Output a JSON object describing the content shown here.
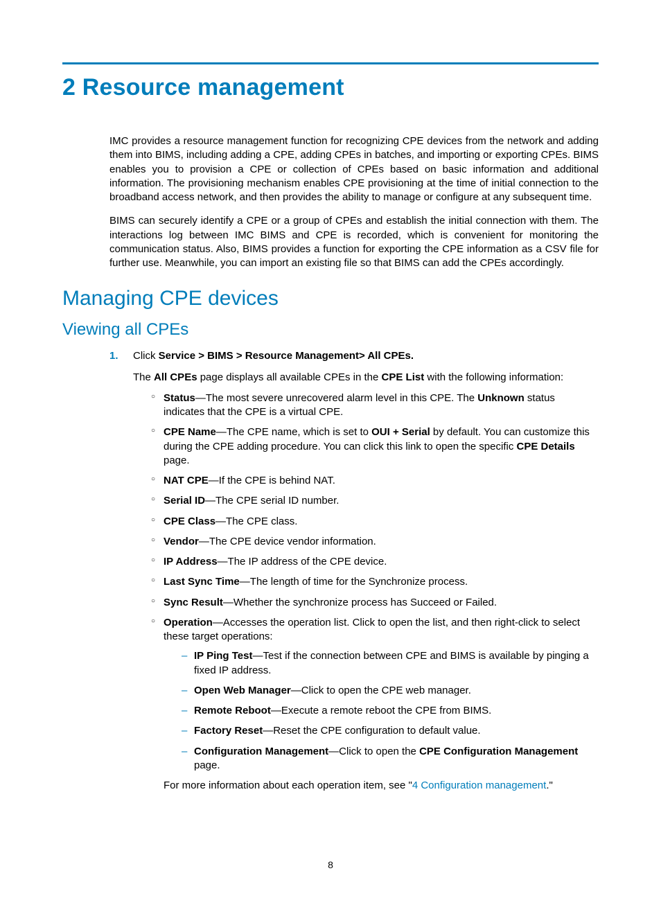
{
  "colors": {
    "accent": "#007dba",
    "text": "#000000",
    "background": "#ffffff"
  },
  "typography": {
    "body_fontsize_pt": 11,
    "h1_fontsize_pt": 26,
    "h2_fontsize_pt": 22,
    "h3_fontsize_pt": 18,
    "font_family": "Arial / Futura-like sans-serif"
  },
  "chapter_title": "2 Resource management",
  "intro_paragraphs": [
    "IMC provides a resource management function for recognizing CPE devices from the network and adding them into BIMS, including adding a CPE, adding CPEs in batches, and importing or exporting CPEs. BIMS enables you to provision a CPE or collection of CPEs based on basic information and additional information. The provisioning mechanism enables CPE provisioning at the time of initial connection to the broadband access network, and then provides the ability to manage or configure at any subsequent time.",
    "BIMS can securely identify a CPE or a group of CPEs and establish the initial connection with them. The interactions log between IMC BIMS and CPE is recorded, which is convenient for monitoring the communication status. Also, BIMS provides a function for exporting the CPE information as a CSV file for further use. Meanwhile, you can import an existing file so that BIMS can add the CPEs accordingly."
  ],
  "section_title": "Managing CPE devices",
  "subsection_title": "Viewing all CPEs",
  "step1": {
    "prefix": "Click ",
    "bold_path": "Service > BIMS > Resource Management> All CPEs.",
    "desc_pre": "The ",
    "desc_b1": "All CPEs",
    "desc_mid": " page displays all available CPEs in the ",
    "desc_b2": "CPE List",
    "desc_post": " with the following information:"
  },
  "fields": [
    {
      "term": "Status",
      "rest": "—The most severe unrecovered alarm level in this CPE. The ",
      "b2": "Unknown",
      "rest2": " status indicates that the CPE is a virtual CPE."
    },
    {
      "term": "CPE Name",
      "rest": "—The CPE name, which is set to ",
      "b2": "OUI + Serial",
      "rest2": " by default. You can customize this during the CPE adding procedure. You can click this link to open the specific ",
      "b3": "CPE Details",
      "rest3": " page."
    },
    {
      "term": "NAT CPE",
      "rest": "—If the CPE is behind NAT."
    },
    {
      "term": "Serial ID",
      "rest": "—The CPE serial ID number."
    },
    {
      "term": "CPE Class",
      "rest": "—The CPE class."
    },
    {
      "term": "Vendor",
      "rest": "—The CPE device vendor information."
    },
    {
      "term": "IP Address",
      "rest": "—The IP address of the CPE device."
    },
    {
      "term": "Last Sync Time",
      "rest": "—The length of time for the Synchronize process."
    },
    {
      "term": "Sync Result",
      "rest": "—Whether the synchronize process has Succeed or Failed."
    },
    {
      "term": "Operation",
      "rest": "—Accesses the operation list. Click to open the list, and then right-click to select these target operations:"
    }
  ],
  "operations": [
    {
      "term": "IP Ping Test",
      "rest": "—Test if the connection between CPE and BIMS is available by pinging a fixed IP address."
    },
    {
      "term": "Open Web Manager",
      "rest": "—Click to open the CPE web manager."
    },
    {
      "term": "Remote Reboot",
      "rest": "—Execute a remote reboot the CPE from BIMS."
    },
    {
      "term": "Factory Reset",
      "rest": "—Reset the CPE configuration to default value."
    },
    {
      "term": "Configuration Management",
      "rest": "—Click to open the ",
      "b2": "CPE Configuration Management",
      "rest2": " page."
    }
  ],
  "more_info": {
    "pre": "For more information about each operation item, see \"",
    "link": "4 Configuration management",
    "post": ".\""
  },
  "page_number": "8"
}
